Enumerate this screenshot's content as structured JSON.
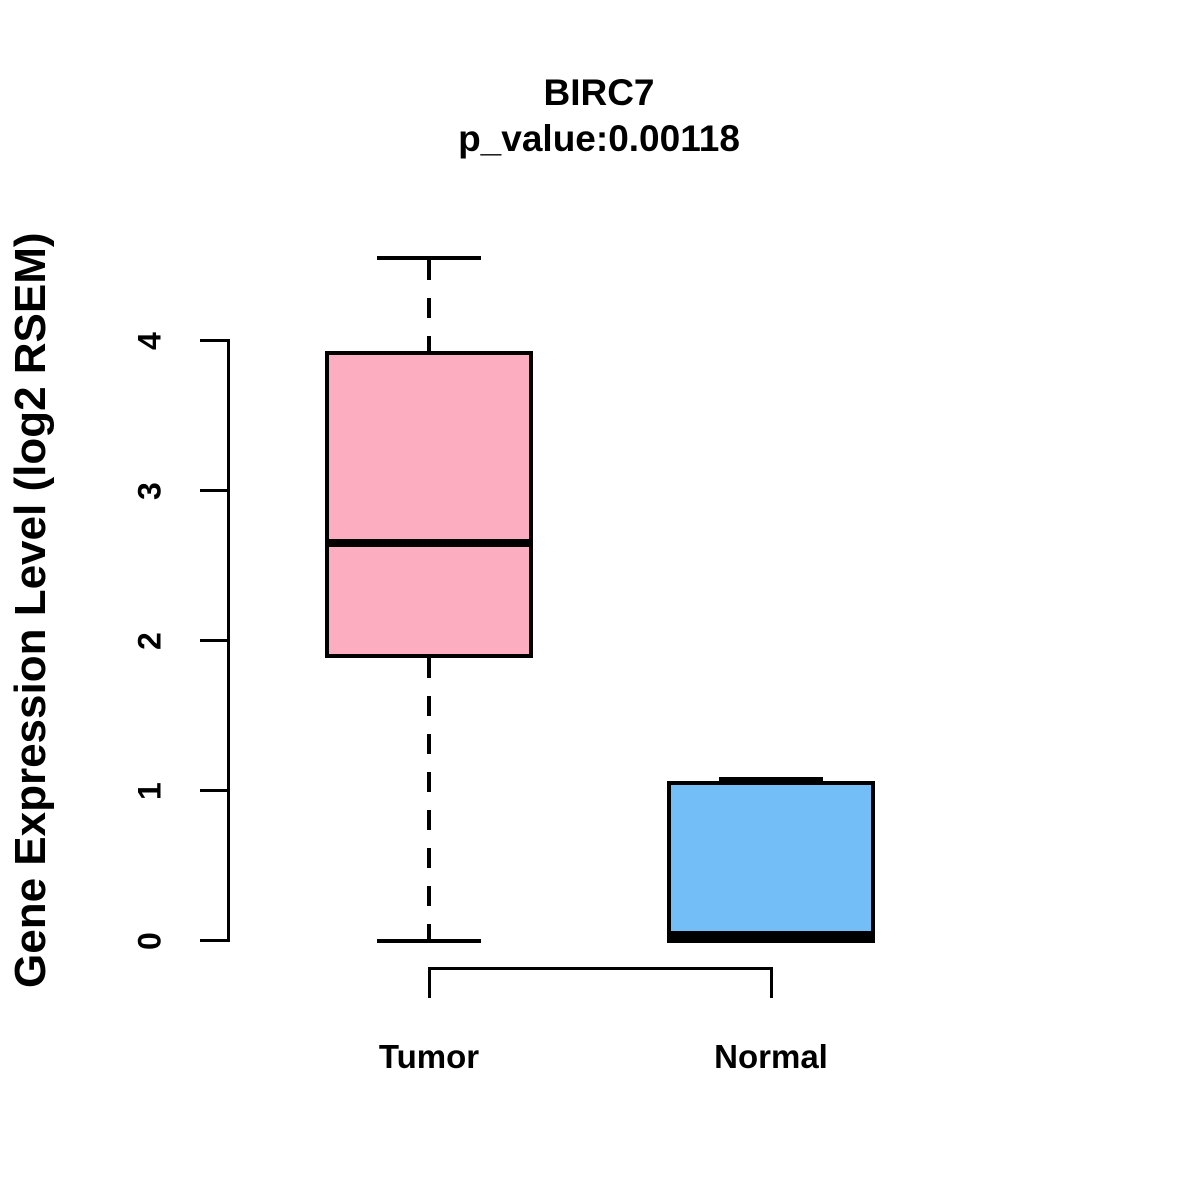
{
  "figure": {
    "background": "#FFFFFF",
    "text_color": "#000000"
  },
  "chart_data": {
    "type": "box",
    "title": "BIRC7",
    "subtitle": "p_value:0.00118",
    "ylabel": "Gene Expression Level (log2 RSEM)",
    "xlabel": "",
    "categories": [
      "Tumor",
      "Normal"
    ],
    "yticks": [
      0,
      1,
      2,
      3,
      4
    ],
    "ylim": [
      -0.25,
      4.75
    ],
    "grid": false,
    "legend": "none",
    "boxes": [
      {
        "category": "Tumor",
        "fill": "#FCAEC0",
        "whisker_low": 0.0,
        "q1": 1.9,
        "median": 2.65,
        "q3": 3.92,
        "whisker_high": 4.55
      },
      {
        "category": "Normal",
        "fill": "#74BEF8",
        "whisker_low": 0.0,
        "q1": 0.0,
        "median": 0.02,
        "q3": 1.05,
        "whisker_high": 1.08
      }
    ],
    "axis_color": "#000000",
    "bracket": {
      "connects": [
        "Tumor",
        "Normal"
      ],
      "side": "bottom"
    }
  }
}
